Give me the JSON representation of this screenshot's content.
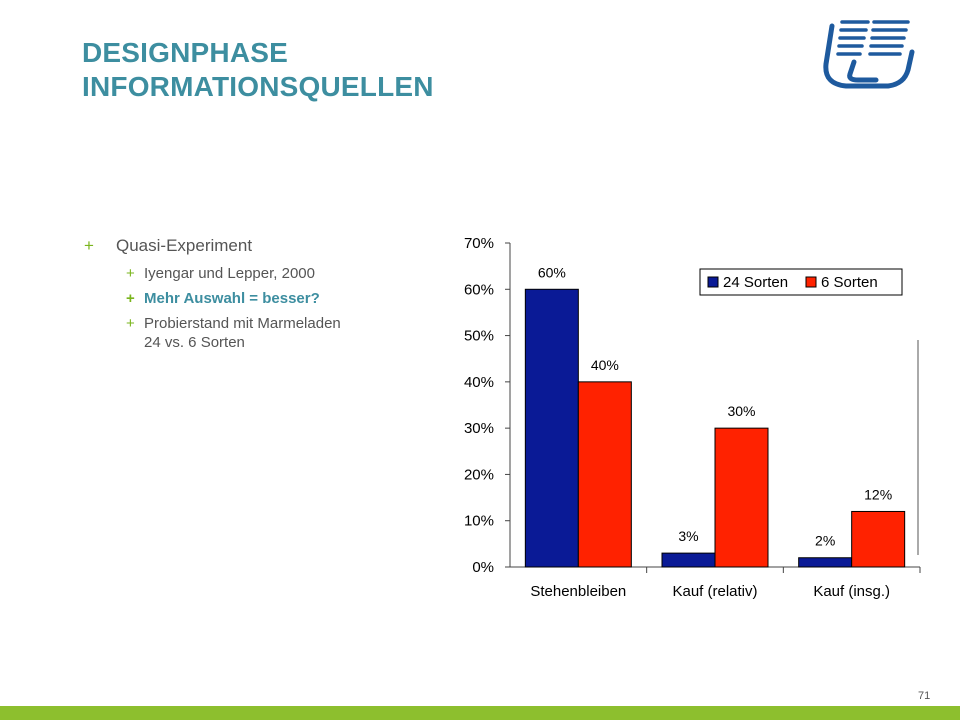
{
  "slide": {
    "title_line1": "DESIGNPHASE",
    "title_line2": "INFORMATIONSQUELLEN",
    "page_number": "71",
    "bullet_symbol": "+",
    "bullets": {
      "main": "Quasi-Experiment",
      "sub": [
        "Iyengar und Lepper, 2000",
        "Mehr Auswahl = besser?",
        "Probierstand mit Marmeladen\n24 vs. 6 Sorten"
      ]
    }
  },
  "colors": {
    "title": "#3d8ea0",
    "bullet_plus": "#7ab51d",
    "footer_bar": "#8dbf2e",
    "series_24": "#0a1a96",
    "series_6": "#ff2200",
    "logo": "#1e5a9e"
  },
  "icons": {
    "logo": "university-logo-icon"
  },
  "chart_data": {
    "type": "bar",
    "categories": [
      "Stehenbleiben",
      "Kauf (relativ)",
      "Kauf (insg.)"
    ],
    "series": [
      {
        "name": "24 Sorten",
        "values": [
          60,
          3,
          2
        ],
        "labels": [
          "60%",
          "3%",
          "2%"
        ]
      },
      {
        "name": "6 Sorten",
        "values": [
          40,
          30,
          12
        ],
        "labels": [
          "40%",
          "30%",
          "12%"
        ]
      }
    ],
    "ylim": [
      0,
      70
    ],
    "yticks": [
      "0%",
      "10%",
      "20%",
      "30%",
      "40%",
      "50%",
      "60%",
      "70%"
    ],
    "legend": "top-right",
    "grid": false
  }
}
